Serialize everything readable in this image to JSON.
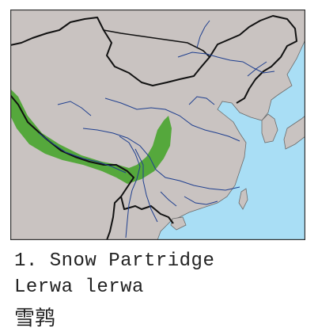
{
  "species": {
    "number": "1.",
    "common_name": "Snow Partridge",
    "scientific_name": "Lerwa lerwa",
    "chinese_name": "雪鹑"
  },
  "map": {
    "colors": {
      "land": "#c9c3c1",
      "sea": "#a9def5",
      "range": "#55a83c",
      "border": "#111111",
      "river": "#1f3f8f"
    }
  }
}
